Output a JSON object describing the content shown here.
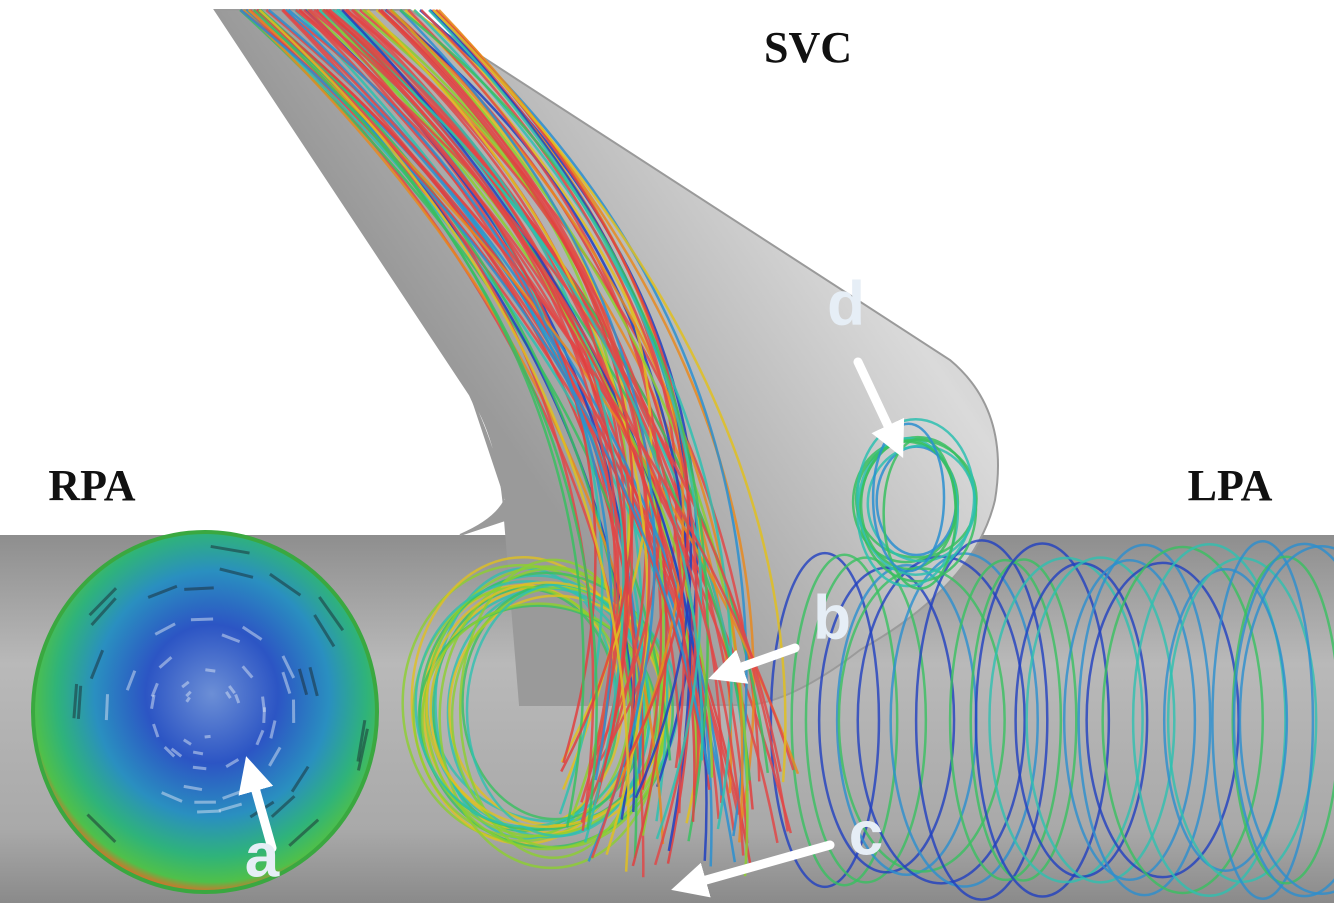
{
  "labels": {
    "svc": "SVC",
    "rpa": "RPA",
    "lpa": "LPA"
  },
  "annotations": [
    "a",
    "b",
    "c",
    "d"
  ]
}
